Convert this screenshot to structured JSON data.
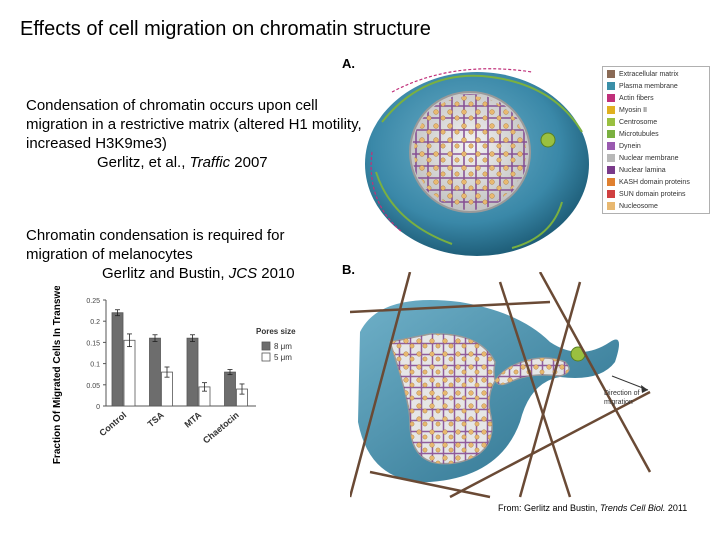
{
  "title": "Effects of cell migration on chromatin structure",
  "block1": {
    "line": "Condensation of chromatin occurs upon cell migration in a restrictive matrix (altered H1 motility, increased H3K9me3)",
    "ref_authors": "Gerlitz, et al., ",
    "ref_journal": "Traffic",
    "ref_year": " 2007"
  },
  "block2": {
    "line": "Chromatin condensation is required for migration of melanocytes",
    "ref_authors": "Gerlitz and Bustin, ",
    "ref_journal": "JCS",
    "ref_year": " 2010"
  },
  "source": {
    "prefix": "From: Gerlitz and Bustin, ",
    "journal": "Trends Cell Biol.",
    "year": " 2011"
  },
  "panel_a": "A.",
  "panel_b": "B.",
  "direction_label": "Direction of migration",
  "legend": {
    "items": [
      {
        "label": "Extracellular matrix",
        "color": "#8a6a55"
      },
      {
        "label": "Plasma membrane",
        "color": "#3a8fa8"
      },
      {
        "label": "Actin fibers",
        "color": "#c0307a"
      },
      {
        "label": "Myosin II",
        "color": "#e0b020"
      },
      {
        "label": "Centrosome",
        "color": "#9ac040"
      },
      {
        "label": "Microtubules",
        "color": "#7ab040"
      },
      {
        "label": "Dynein",
        "color": "#9a5ab0"
      },
      {
        "label": "Nuclear membrane",
        "color": "#b8b8b8"
      },
      {
        "label": "Nuclear lamina",
        "color": "#7a3a8a"
      },
      {
        "label": "KASH domain proteins",
        "color": "#e08030"
      },
      {
        "label": "SUN domain proteins",
        "color": "#d04040"
      },
      {
        "label": "Nucleosome",
        "color": "#e8b870"
      }
    ]
  },
  "chart_data": {
    "type": "bar",
    "categories": [
      "Control",
      "TSA",
      "MTA",
      "Chaetocin"
    ],
    "ylabel": "Fraction Of Migrated Cells In Transwell Assay",
    "ylim": [
      0,
      0.25
    ],
    "yticks": [
      "0",
      "0.05",
      "0.1",
      "0.15",
      "0.2",
      "0.25"
    ],
    "legend_title": "Pores size",
    "series": [
      {
        "name": "8 μm",
        "color": "#6d6d6d",
        "values": [
          0.22,
          0.16,
          0.16,
          0.08
        ]
      },
      {
        "name": "5 μm",
        "color": "#ffffff",
        "values": [
          0.155,
          0.08,
          0.045,
          0.04
        ]
      }
    ],
    "errors": [
      [
        0.007,
        0.008,
        0.008,
        0.006
      ],
      [
        0.015,
        0.012,
        0.01,
        0.012
      ]
    ]
  }
}
